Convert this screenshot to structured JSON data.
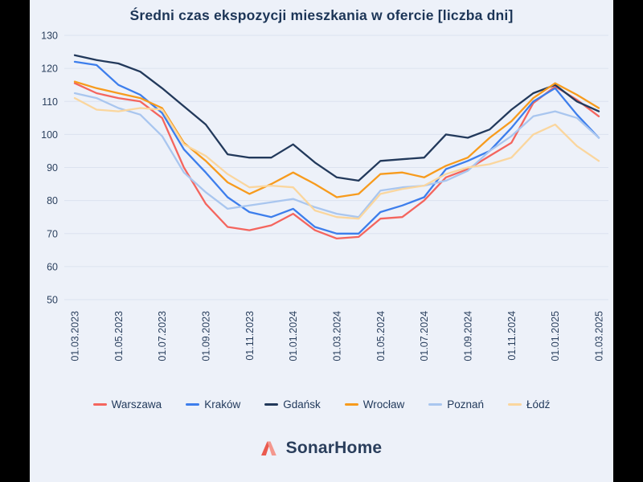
{
  "page": {
    "background": "#EDF1F9",
    "frame_color": "#000000",
    "accent_red": "#EA5A4F"
  },
  "chart_data": {
    "type": "line",
    "title": "Średni czas ekspozycji mieszkania w ofercie [liczba dni]",
    "xlabel": "",
    "ylabel": "",
    "ylim": [
      50,
      130
    ],
    "y_ticks": [
      50,
      60,
      70,
      80,
      90,
      100,
      110,
      120,
      130
    ],
    "grid": "horizontal",
    "legend_position": "bottom",
    "x": [
      "01.03.2023",
      "01.04.2023",
      "01.05.2023",
      "01.06.2023",
      "01.07.2023",
      "01.08.2023",
      "01.09.2023",
      "01.10.2023",
      "01.11.2023",
      "01.12.2023",
      "01.01.2024",
      "01.02.2024",
      "01.03.2024",
      "01.04.2024",
      "01.05.2024",
      "01.06.2024",
      "01.07.2024",
      "01.08.2024",
      "01.09.2024",
      "01.10.2024",
      "01.11.2024",
      "01.12.2024",
      "01.01.2025",
      "01.02.2025",
      "01.03.2025"
    ],
    "x_tick_labels": [
      "01.03.2023",
      "01.05.2023",
      "01.07.2023",
      "01.09.2023",
      "01.11.2023",
      "01.01.2024",
      "01.03.2024",
      "01.05.2024",
      "01.07.2024",
      "01.09.2024",
      "01.11.2024",
      "01.01.2025",
      "01.03.2025"
    ],
    "series": [
      {
        "name": "Warszawa",
        "color": "#F4655E",
        "values": [
          115.5,
          112.5,
          111,
          110,
          105,
          90,
          79,
          72,
          71,
          72.5,
          76,
          71,
          68.5,
          69,
          74.5,
          75,
          80,
          87,
          89.5,
          93.5,
          97.5,
          109.5,
          114.5,
          110.5,
          105.5
        ]
      },
      {
        "name": "Kraków",
        "color": "#3D7EEC",
        "values": [
          122,
          121,
          115,
          112,
          106.5,
          95.5,
          88.5,
          81,
          76.5,
          75,
          77.5,
          72,
          70,
          70,
          76.5,
          78.5,
          81,
          89.5,
          92,
          95,
          102,
          110,
          114,
          106,
          99
        ]
      },
      {
        "name": "Gdańsk",
        "color": "#22395B",
        "values": [
          124,
          122.5,
          121.5,
          119,
          114,
          108.5,
          103,
          94,
          93,
          93,
          97,
          91.5,
          87,
          86,
          92,
          92.5,
          93,
          100,
          99,
          101.5,
          107.5,
          112.5,
          115,
          110,
          107
        ]
      },
      {
        "name": "Wrocław",
        "color": "#F79B1D",
        "values": [
          116,
          114,
          112.5,
          111,
          108,
          97.5,
          92,
          85.5,
          82,
          85,
          88.5,
          85,
          81,
          82,
          88,
          88.5,
          87,
          90.5,
          93,
          99,
          104,
          111,
          115.5,
          112,
          108
        ]
      },
      {
        "name": "Poznań",
        "color": "#A9C6EF",
        "values": [
          112.5,
          111,
          108,
          106,
          99.5,
          88.5,
          82.5,
          77.5,
          78.5,
          79.5,
          80.5,
          78,
          76,
          75,
          83,
          84,
          84.5,
          86,
          89,
          95,
          99.5,
          105.5,
          107,
          105,
          99
        ]
      },
      {
        "name": "Łódź",
        "color": "#FAD69E",
        "values": [
          111,
          107.5,
          107,
          108,
          107.5,
          97,
          93.5,
          88,
          84,
          84.5,
          84,
          77,
          75,
          74.5,
          82,
          83.5,
          84.5,
          88,
          90,
          91,
          93,
          100,
          103,
          96.5,
          92
        ]
      }
    ]
  },
  "footer": {
    "brand": "SonarHome",
    "logo_dark": "#EA5A4F",
    "logo_light": "#F4978E"
  }
}
